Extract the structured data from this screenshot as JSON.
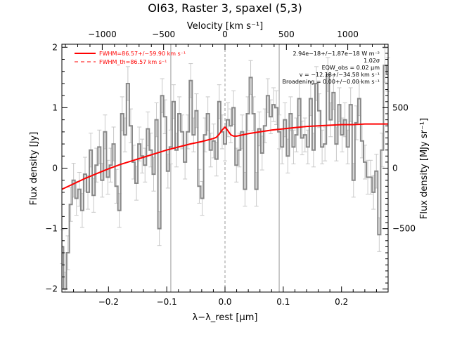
{
  "chart_data": {
    "type": "line",
    "title": "OI63, Raster 3, spaxel (5,3)",
    "xlabel": "λ−λ_rest [μm]",
    "ylabel": "Flux density [Jy]",
    "top_xlabel": "Velocity [km s⁻¹]",
    "right_ylabel": "Flux density [MJy sr⁻¹]",
    "xlim": [
      -0.28,
      0.28
    ],
    "ylim": [
      -2.05,
      2.05
    ],
    "x_ticks": [
      -0.2,
      -0.1,
      0.0,
      0.1,
      0.2
    ],
    "x_tick_labels": [
      "−0.2",
      "−0.1",
      "0.0",
      "0.1",
      "0.2"
    ],
    "y_ticks": [
      -2,
      -1,
      0,
      1,
      2
    ],
    "y_tick_labels": [
      "−2",
      "−1",
      "0",
      "1",
      "2"
    ],
    "top_ticks": [
      -1000,
      -500,
      0,
      500,
      1000
    ],
    "top_tick_labels": [
      "−1000",
      "−500",
      "0",
      "500",
      "1000"
    ],
    "top_tick_x": [
      -0.2107,
      -0.1054,
      0.0,
      0.1054,
      0.2107
    ],
    "right_ticks": [
      -500,
      0,
      500
    ],
    "right_tick_labels": [
      "−500",
      "0",
      "500"
    ],
    "right_tick_y": [
      -1.0,
      0.0,
      1.0
    ],
    "vertical_lines": [
      {
        "x": -0.093,
        "style": "solid",
        "color": "#999999"
      },
      {
        "x": 0.0,
        "style": "dashed",
        "color": "#999999"
      },
      {
        "x": 0.093,
        "style": "solid",
        "color": "#999999"
      }
    ],
    "series": [
      {
        "name": "Data",
        "style": "step",
        "color": "#888888",
        "x": [
          -0.2795,
          -0.2746,
          -0.2697,
          -0.2648,
          -0.2599,
          -0.255,
          -0.25,
          -0.2451,
          -0.2402,
          -0.2353,
          -0.2304,
          -0.2255,
          -0.2206,
          -0.2157,
          -0.2108,
          -0.2059,
          -0.201,
          -0.1961,
          -0.1912,
          -0.1863,
          -0.1814,
          -0.1765,
          -0.1716,
          -0.1667,
          -0.1618,
          -0.1569,
          -0.152,
          -0.1471,
          -0.1422,
          -0.1373,
          -0.1324,
          -0.1275,
          -0.1225,
          -0.1176,
          -0.1127,
          -0.1078,
          -0.1029,
          -0.098,
          -0.0931,
          -0.0882,
          -0.0833,
          -0.0784,
          -0.0735,
          -0.0686,
          -0.0637,
          -0.0588,
          -0.0539,
          -0.049,
          -0.0441,
          -0.0392,
          -0.0343,
          -0.0294,
          -0.0245,
          -0.0196,
          -0.0147,
          -0.0098,
          -0.0049,
          0.0,
          0.0049,
          0.0098,
          0.0147,
          0.0196,
          0.0245,
          0.0294,
          0.0343,
          0.0392,
          0.0441,
          0.049,
          0.0539,
          0.0588,
          0.0637,
          0.0686,
          0.0735,
          0.0784,
          0.0833,
          0.0882,
          0.0931,
          0.098,
          0.1029,
          0.1078,
          0.1127,
          0.1176,
          0.1225,
          0.1275,
          0.1324,
          0.1373,
          0.1422,
          0.1471,
          0.152,
          0.1569,
          0.1618,
          0.1667,
          0.1716,
          0.1765,
          0.1814,
          0.1863,
          0.1912,
          0.1961,
          0.201,
          0.2059,
          0.2108,
          0.2157,
          0.2206,
          0.2255,
          0.2304,
          0.2353,
          0.2402,
          0.2451,
          0.25,
          0.2549,
          0.2598,
          0.2647,
          0.2696,
          0.2745,
          0.2794
        ],
        "y": [
          -1.3,
          -2.0,
          -1.4,
          -0.6,
          -0.2,
          -0.5,
          -0.35,
          -0.7,
          -0.1,
          -0.4,
          0.3,
          -0.45,
          0.05,
          0.35,
          -0.2,
          0.6,
          -0.15,
          0.05,
          0.4,
          -0.3,
          -0.7,
          0.9,
          0.55,
          1.4,
          0.7,
          0.1,
          -0.25,
          0.4,
          0.2,
          0.05,
          0.65,
          0.3,
          -0.1,
          0.8,
          -1.0,
          1.2,
          0.85,
          -0.05,
          0.35,
          1.1,
          0.3,
          0.9,
          0.6,
          0.1,
          0.6,
          1.45,
          0.55,
          0.95,
          -0.3,
          -0.5,
          0.55,
          0.9,
          0.3,
          0.45,
          0.15,
          1.1,
          0.6,
          0.4,
          0.8,
          0.7,
          1.0,
          0.05,
          0.3,
          0.6,
          -0.35,
          0.9,
          1.5,
          0.9,
          -0.35,
          0.65,
          0.25,
          0.7,
          1.2,
          0.85,
          1.05,
          1.0,
          0.6,
          0.35,
          0.8,
          0.2,
          0.9,
          0.35,
          0.55,
          1.15,
          0.5,
          0.55,
          0.35,
          1.15,
          0.3,
          1.4,
          0.95,
          0.35,
          0.4,
          1.55,
          0.8,
          1.25,
          0.4,
          1.05,
          0.55,
          0.8,
          0.35,
          1.05,
          -0.2,
          0.75,
          1.15,
          0.45,
          0.1,
          -0.15,
          -0.15,
          -0.4,
          -0.05,
          -1.1,
          0.3,
          1.7,
          1.55
        ],
        "errors": [
          0.28,
          0.28,
          0.28,
          0.28,
          0.28,
          0.28,
          0.28,
          0.28,
          0.28,
          0.28,
          0.28,
          0.28,
          0.28,
          0.28,
          0.28,
          0.28,
          0.28,
          0.28,
          0.28,
          0.28,
          0.28,
          0.28,
          0.28,
          0.28,
          0.28,
          0.28,
          0.28,
          0.28,
          0.28,
          0.28,
          0.28,
          0.28,
          0.28,
          0.28,
          0.28,
          0.28,
          0.28,
          0.28,
          0.28,
          0.28,
          0.28,
          0.28,
          0.28,
          0.28,
          0.28,
          0.28,
          0.28,
          0.28,
          0.28,
          0.28,
          0.28,
          0.28,
          0.28,
          0.28,
          0.28,
          0.28,
          0.28,
          0.28,
          0.28,
          0.28,
          0.28,
          0.28,
          0.28,
          0.28,
          0.28,
          0.28,
          0.28,
          0.28,
          0.28,
          0.28,
          0.28,
          0.28,
          0.28,
          0.28,
          0.28,
          0.28,
          0.28,
          0.28,
          0.28,
          0.28,
          0.28,
          0.28,
          0.28,
          0.28,
          0.28,
          0.28,
          0.28,
          0.28,
          0.28,
          0.28,
          0.28,
          0.28,
          0.28,
          0.28,
          0.28,
          0.28,
          0.28,
          0.28,
          0.28,
          0.28,
          0.28,
          0.28,
          0.28,
          0.28,
          0.28,
          0.28,
          0.28,
          0.28,
          0.28,
          0.28,
          0.28,
          0.28,
          0.28,
          0.28,
          0.28
        ]
      },
      {
        "name": "FWHM=86.57+/−59.90 km s⁻¹",
        "style": "line",
        "color": "#ff0000",
        "x": [
          -0.28,
          -0.26,
          -0.24,
          -0.22,
          -0.2,
          -0.18,
          -0.16,
          -0.14,
          -0.12,
          -0.1,
          -0.08,
          -0.06,
          -0.04,
          -0.02,
          -0.015,
          -0.01,
          -0.005,
          0.0,
          0.005,
          0.01,
          0.015,
          0.02,
          0.04,
          0.06,
          0.08,
          0.1,
          0.12,
          0.14,
          0.16,
          0.18,
          0.2,
          0.22,
          0.24,
          0.26,
          0.28
        ],
        "y": [
          -0.35,
          -0.26,
          -0.17,
          -0.09,
          -0.01,
          0.06,
          0.12,
          0.18,
          0.24,
          0.3,
          0.35,
          0.4,
          0.44,
          0.49,
          0.51,
          0.56,
          0.63,
          0.68,
          0.62,
          0.55,
          0.53,
          0.53,
          0.57,
          0.6,
          0.63,
          0.65,
          0.67,
          0.69,
          0.7,
          0.71,
          0.72,
          0.72,
          0.73,
          0.73,
          0.73
        ]
      },
      {
        "name": "FWHM_th=86.57 km s⁻¹",
        "style": "dashed",
        "color": "#ff0000",
        "x": [],
        "y": []
      }
    ]
  },
  "annotations": [
    "2.94e−18+/−1.87e−18 W m⁻²",
    "1.02σ",
    "EQW_obs = 0.02 μm",
    "v = −12.18+/−34.58 km s⁻¹",
    "Broadening = 0.00+/−0.00 km s⁻¹"
  ]
}
